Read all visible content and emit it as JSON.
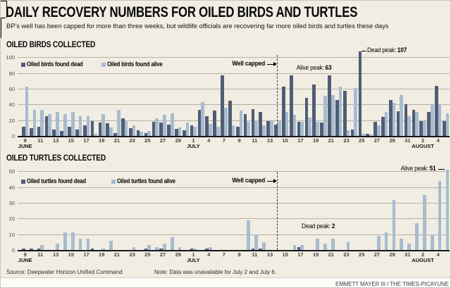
{
  "header": {
    "title": "DAILY RECOVERY NUMBERS FOR OILED BIRDS AND TURTLES",
    "subtitle": "BP’s well has been capped for more than three weeks, but wildlife officials are recovering far more oiled birds and turtles these days"
  },
  "footer": {
    "source": "Source: Deepwater Horizon Unified Command",
    "note": "Note: Data was unavailable for July 2 and July 6.",
    "credit": "EMMETT MAYER III / THE TIMES-PICAYUNE"
  },
  "colors": {
    "background": "#f1ede3",
    "dead_bar": "#515d76",
    "alive_bar": "#a7bccf",
    "gridline": "#b5b1a6",
    "axis": "#17171b",
    "annotation_line": "#000000"
  },
  "month_labels": {
    "Jun": "JUNE",
    "Jul": "JULY",
    "Aug": "AUGUST"
  },
  "chart_data": [
    {
      "id": "birds",
      "type": "bar",
      "title": "OILED BIRDS COLLECTED",
      "ylim": [
        0,
        100
      ],
      "y_ticks": [
        100,
        80,
        60,
        40,
        20,
        0
      ],
      "grid": true,
      "legend_position": "inside-top-left",
      "categories": [
        "Jun 9",
        "Jun 10",
        "Jun 11",
        "Jun 12",
        "Jun 13",
        "Jun 14",
        "Jun 15",
        "Jun 16",
        "Jun 17",
        "Jun 18",
        "Jun 19",
        "Jun 20",
        "Jun 21",
        "Jun 22",
        "Jun 23",
        "Jun 24",
        "Jun 25",
        "Jun 26",
        "Jun 27",
        "Jun 28",
        "Jun 29",
        "Jun 30",
        "Jul 1",
        "Jul 3",
        "Jul 4",
        "Jul 5",
        "Jul 7",
        "Jul 8",
        "Jul 9",
        "Jul 10",
        "Jul 11",
        "Jul 12",
        "Jul 13",
        "Jul 14",
        "Jul 15",
        "Jul 16",
        "Jul 17",
        "Jul 18",
        "Jul 19",
        "Jul 20",
        "Jul 21",
        "Jul 22",
        "Jul 23",
        "Jul 24",
        "Jul 25",
        "Jul 26",
        "Jul 27",
        "Jul 28",
        "Jul 29",
        "Jul 30",
        "Jul 31",
        "Aug 1",
        "Aug 2",
        "Aug 3",
        "Aug 4",
        "Aug 5"
      ],
      "series": [
        {
          "name": "Oiled birds found dead",
          "color_key": "dead_bar",
          "values": [
            12,
            10,
            12,
            25,
            8,
            6,
            12,
            8,
            13,
            19,
            17,
            16,
            4,
            22,
            10,
            7,
            4,
            18,
            17,
            14,
            9,
            7,
            13,
            33,
            25,
            32,
            77,
            45,
            12,
            28,
            34,
            30,
            19,
            14,
            63,
            77,
            18,
            48,
            65,
            17,
            77,
            46,
            57,
            8,
            107,
            3,
            18,
            24,
            46,
            31,
            40,
            33,
            19,
            30,
            64,
            19
          ]
        },
        {
          "name": "Oiled birds found alive",
          "color_key": "alive_bar",
          "values": [
            63,
            33,
            33,
            28,
            30,
            28,
            30,
            25,
            25,
            3,
            28,
            11,
            33,
            20,
            13,
            5,
            6,
            22,
            27,
            29,
            11,
            17,
            12,
            43,
            15,
            12,
            36,
            13,
            32,
            18,
            20,
            13,
            19,
            19,
            30,
            27,
            18,
            23,
            18,
            51,
            52,
            63,
            7,
            61,
            3,
            2,
            13,
            30,
            42,
            52,
            25,
            30,
            19,
            40,
            39,
            29
          ]
        }
      ],
      "annotations": [
        {
          "id": "well-capped",
          "text": "Well capped",
          "target_category": "Jul 15"
        },
        {
          "id": "alive-peak",
          "label": "Alive peak:",
          "value": "63",
          "series": "alive",
          "target_category": "Jul 22"
        },
        {
          "id": "dead-peak",
          "label": "Dead peak:",
          "value": "107",
          "series": "dead",
          "target_category": "Jul 25"
        }
      ]
    },
    {
      "id": "turtles",
      "type": "bar",
      "title": "OILED TURTLES COLLECTED",
      "ylim": [
        0,
        50
      ],
      "y_ticks": [
        50,
        40,
        30,
        20,
        10,
        0
      ],
      "grid": true,
      "legend_position": "inside-top-left",
      "categories": [
        "Jun 9",
        "Jun 10",
        "Jun 11",
        "Jun 12",
        "Jun 13",
        "Jun 14",
        "Jun 15",
        "Jun 16",
        "Jun 17",
        "Jun 18",
        "Jun 19",
        "Jun 20",
        "Jun 21",
        "Jun 22",
        "Jun 23",
        "Jun 24",
        "Jun 25",
        "Jun 26",
        "Jun 27",
        "Jun 28",
        "Jun 29",
        "Jun 30",
        "Jul 1",
        "Jul 3",
        "Jul 4",
        "Jul 5",
        "Jul 7",
        "Jul 8",
        "Jul 9",
        "Jul 10",
        "Jul 11",
        "Jul 12",
        "Jul 13",
        "Jul 14",
        "Jul 15",
        "Jul 16",
        "Jul 17",
        "Jul 18",
        "Jul 19",
        "Jul 20",
        "Jul 21",
        "Jul 22",
        "Jul 23",
        "Jul 24",
        "Jul 25",
        "Jul 26",
        "Jul 27",
        "Jul 28",
        "Jul 29",
        "Jul 30",
        "Jul 31",
        "Aug 1",
        "Aug 2",
        "Aug 3",
        "Aug 4",
        "Aug 5"
      ],
      "series": [
        {
          "name": "Oiled turtles found dead",
          "color_key": "dead_bar",
          "values": [
            1,
            1,
            1,
            0,
            0,
            0,
            0,
            0,
            0,
            1,
            0,
            0,
            0,
            0,
            0,
            0,
            1,
            0,
            1,
            0,
            0,
            0,
            1,
            0,
            1,
            0,
            0,
            0,
            0,
            0,
            1,
            1,
            0,
            0,
            0,
            0,
            2,
            0,
            0,
            0,
            0,
            0,
            0,
            0,
            0,
            0,
            0,
            0,
            0,
            0,
            0,
            0,
            0,
            0,
            0,
            0
          ]
        },
        {
          "name": "Oiled turtles found alive",
          "color_key": "alive_bar",
          "values": [
            0,
            0,
            3,
            0,
            4,
            11,
            11,
            7,
            7,
            0,
            1,
            6,
            0,
            0,
            2,
            0,
            3,
            2,
            4,
            8,
            2,
            0,
            1,
            0,
            2,
            0,
            0,
            0,
            0,
            19,
            10,
            5,
            0,
            0,
            0,
            3,
            3,
            0,
            7,
            4,
            7,
            0,
            5,
            0,
            0,
            0,
            9,
            11,
            32,
            7,
            4,
            17,
            35,
            10,
            44,
            51
          ]
        }
      ],
      "annotations": [
        {
          "id": "well-capped",
          "text": "Well capped",
          "target_category": "Jul 15"
        },
        {
          "id": "dead-peak",
          "label": "Dead peak:",
          "value": "2",
          "series": "dead",
          "target_category": "Jul 17"
        },
        {
          "id": "alive-peak",
          "label": "Alive peak:",
          "value": "51",
          "series": "alive",
          "target_category": "Aug 5"
        }
      ]
    }
  ]
}
